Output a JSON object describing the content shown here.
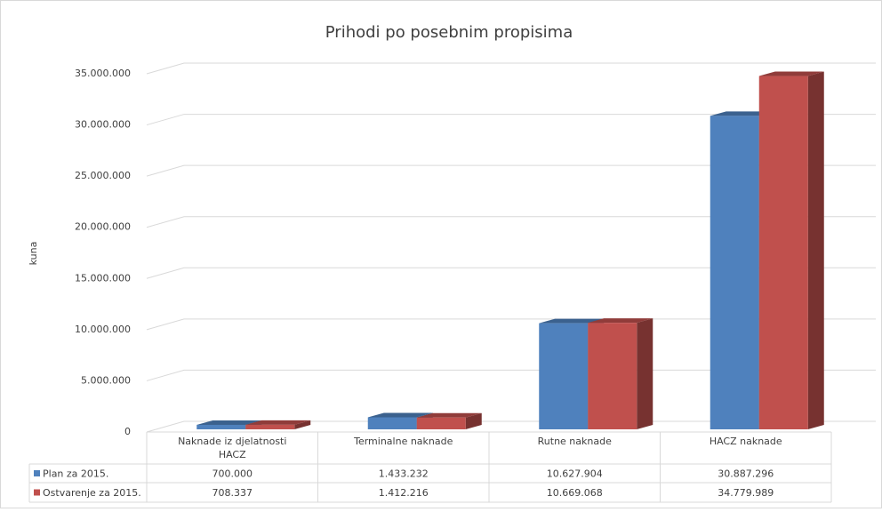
{
  "chart_data": {
    "type": "bar3d",
    "title": "Prihodi po posebnim propisima",
    "y_label": "kuna",
    "categories": [
      "Naknade iz djelatnosti HACZ",
      "Terminalne naknade",
      "Rutne naknade",
      "HACZ naknade"
    ],
    "series": [
      {
        "name": "Plan za 2015.",
        "color": "#4f81bd",
        "values": [
          700000,
          1433232,
          10627904,
          30887296
        ],
        "value_labels": [
          "700.000",
          "1.433.232",
          "10.627.904",
          "30.887.296"
        ]
      },
      {
        "name": "Ostvarenje za 2015.",
        "color": "#c0504d",
        "values": [
          708337,
          1412216,
          10669068,
          34779989
        ],
        "value_labels": [
          "708.337",
          "1.412.216",
          "10.669.068",
          "34.779.989"
        ]
      }
    ],
    "ylim": [
      0,
      35000000
    ],
    "yticks": [
      0,
      {
        "value": 5000000,
        "label": "5.000.000"
      },
      {
        "value": 10000000,
        "label": "10.000.000"
      },
      {
        "value": 15000000,
        "label": "15.000.000"
      },
      {
        "value": 20000000,
        "label": "20.000.000"
      },
      {
        "value": 25000000,
        "label": "25.000.000"
      },
      {
        "value": 30000000,
        "label": "30.000.000"
      },
      {
        "value": 35000000,
        "label": "35.000.000"
      }
    ],
    "grid": true,
    "data_table": true
  }
}
